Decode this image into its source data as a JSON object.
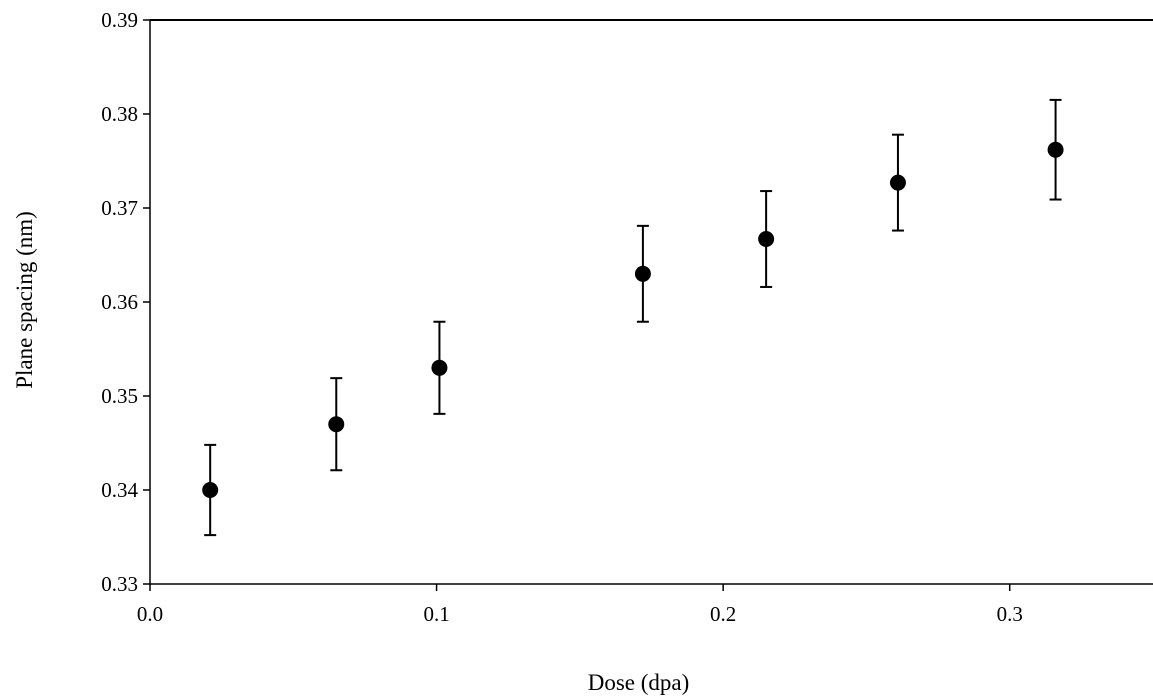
{
  "chart_data": {
    "type": "scatter",
    "title": "",
    "xlabel": "Dose (dpa)",
    "ylabel": "Plane spacing (nm)",
    "xlim": [
      0.0,
      0.35
    ],
    "ylim": [
      0.33,
      0.39
    ],
    "x_ticks": [
      0.0,
      0.1,
      0.2,
      0.3
    ],
    "x_tick_labels": [
      "0.0",
      "0.1",
      "0.2",
      "0.3"
    ],
    "y_ticks": [
      0.33,
      0.34,
      0.35,
      0.36,
      0.37,
      0.38,
      0.39
    ],
    "y_tick_labels": [
      "0.33",
      "0.34",
      "0.35",
      "0.36",
      "0.37",
      "0.38",
      "0.39"
    ],
    "grid": false,
    "legend": "none",
    "marker_color": "#000000",
    "series": [
      {
        "x": [
          0.021,
          0.065,
          0.101,
          0.172,
          0.215,
          0.261,
          0.316
        ],
        "y": [
          0.34,
          0.347,
          0.353,
          0.363,
          0.3667,
          0.3727,
          0.3762
        ],
        "error": [
          0.0048,
          0.0049,
          0.0049,
          0.0051,
          0.0051,
          0.0051,
          0.0053
        ]
      }
    ]
  }
}
